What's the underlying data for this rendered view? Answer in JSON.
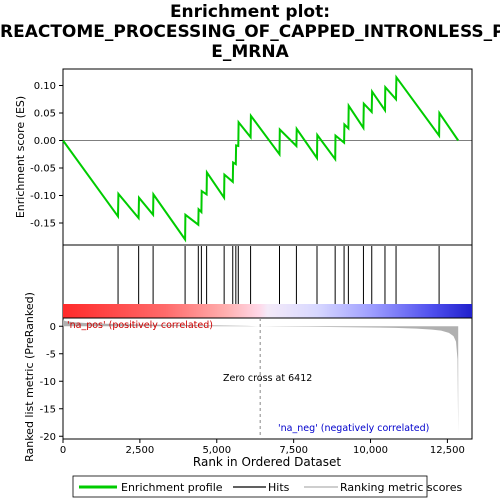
{
  "title_lines": [
    "Enrichment plot:",
    "REACTOME_PROCESSING_OF_CAPPED_INTRONLESS_PR",
    "E_MRNA"
  ],
  "legend": {
    "enrichment_profile": "Enrichment profile",
    "hits": "Hits",
    "ranking_metric_scores": "Ranking metric scores"
  },
  "colors": {
    "profile": "#00cc00",
    "hits": "#000000",
    "ranked_metric": "#b0b0b0",
    "pos_label": "#cc0000",
    "neg_label": "#0000cc",
    "zero_cross": "#888888"
  },
  "annotations": {
    "pos_label": "'na_pos' (positively correlated)",
    "neg_label": "'na_neg' (negatively correlated)",
    "zero_cross": "Zero cross at 6412"
  },
  "chart_data": [
    {
      "type": "line",
      "name": "enrichment-score-panel",
      "ylabel": "Enrichment score (ES)",
      "xlim": [
        0,
        13300
      ],
      "ylim": [
        -0.19,
        0.13
      ],
      "yticks": [
        0.1,
        0.05,
        0.0,
        -0.05,
        -0.1,
        -0.15
      ],
      "ytick_labels": [
        "0.10",
        "0.05",
        "0.00",
        "-0.05",
        "-0.10",
        "-0.15"
      ],
      "grid": false,
      "series": [
        {
          "name": "Enrichment profile",
          "x": [
            0,
            1790,
            1800,
            2460,
            2470,
            2930,
            2940,
            3970,
            3980,
            4400,
            4410,
            4500,
            4510,
            4670,
            4680,
            5240,
            5250,
            5520,
            5530,
            5620,
            5630,
            5700,
            5710,
            6100,
            6110,
            7040,
            7050,
            7590,
            7600,
            8260,
            8270,
            8850,
            8860,
            9140,
            9150,
            9280,
            9290,
            9770,
            9780,
            10040,
            10050,
            10470,
            10480,
            10830,
            10840,
            12230,
            12240,
            12850
          ],
          "y": [
            0.0,
            -0.138,
            -0.097,
            -0.141,
            -0.104,
            -0.135,
            -0.098,
            -0.18,
            -0.135,
            -0.153,
            -0.125,
            -0.13,
            -0.092,
            -0.098,
            -0.058,
            -0.104,
            -0.062,
            -0.075,
            -0.04,
            -0.043,
            -0.009,
            -0.01,
            0.033,
            0.006,
            0.045,
            -0.025,
            0.02,
            -0.01,
            0.021,
            -0.032,
            0.01,
            -0.034,
            0.009,
            -0.004,
            0.029,
            0.022,
            0.063,
            0.023,
            0.067,
            0.052,
            0.089,
            0.055,
            0.097,
            0.075,
            0.115,
            0.009,
            0.05,
            0.0
          ]
        }
      ]
    },
    {
      "type": "scatter",
      "name": "hits-panel",
      "hit_positions": [
        1790,
        2460,
        2930,
        3970,
        4400,
        4500,
        4670,
        5240,
        5520,
        5620,
        5700,
        6100,
        7040,
        7590,
        8260,
        8850,
        9140,
        9280,
        9770,
        10040,
        10470,
        10830,
        12230
      ]
    },
    {
      "type": "area",
      "name": "ranked-metric-panel",
      "xlabel": "Rank in Ordered Dataset",
      "ylabel": "Ranked list metric (PreRanked)",
      "xlim": [
        0,
        13300
      ],
      "ylim": [
        -20.5,
        1.5
      ],
      "xticks": [
        0,
        2500,
        5000,
        7500,
        10000,
        12500
      ],
      "xtick_labels": [
        "0",
        "2,500",
        "5,000",
        "7,500",
        "10,000",
        "12,500"
      ],
      "yticks": [
        0,
        -5,
        -10,
        -15,
        -20
      ],
      "ytick_labels": [
        "0",
        "-5",
        "-10",
        "-15",
        "-20"
      ],
      "zero_cross": 6412,
      "series": [
        {
          "name": "Ranking metric scores",
          "x": [
            0,
            100,
            400,
            1000,
            2000,
            3000,
            4000,
            5000,
            6000,
            6412,
            7000,
            8000,
            9000,
            10000,
            10800,
            11500,
            12000,
            12300,
            12550,
            12700,
            12780,
            12830,
            12850
          ],
          "y": [
            1.1,
            0.9,
            0.7,
            0.5,
            0.4,
            0.3,
            0.22,
            0.15,
            0.06,
            0.0,
            -0.05,
            -0.1,
            -0.16,
            -0.22,
            -0.3,
            -0.42,
            -0.6,
            -0.8,
            -1.2,
            -1.8,
            -2.8,
            -6.0,
            -19.5
          ]
        }
      ]
    }
  ]
}
